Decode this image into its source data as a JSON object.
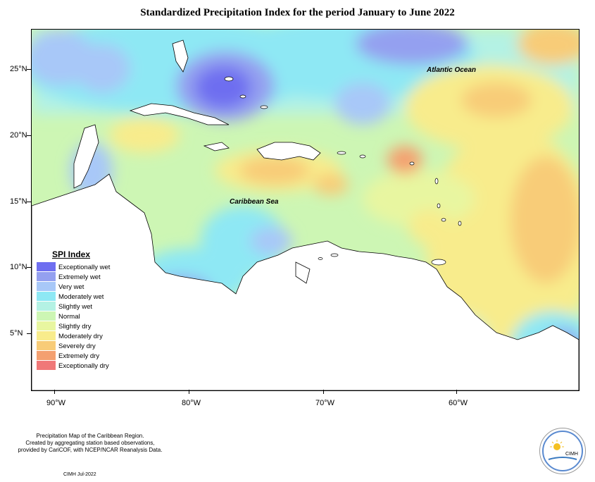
{
  "title": "Standardized Precipitation Index for the period January to June 2022",
  "lat_labels": [
    "25°N",
    "20°N",
    "15°N",
    "10°N",
    "5°N"
  ],
  "lon_labels": [
    "90°W",
    "80°W",
    "70°W",
    "60°W"
  ],
  "regions": {
    "atlantic": "Atlantic Ocean",
    "caribbean": "Caribbean Sea"
  },
  "legend": {
    "title": "SPI Index",
    "items": [
      {
        "label": "Exceptionally wet",
        "color": "#6e6ef0"
      },
      {
        "label": "Extremely wet",
        "color": "#94a0f0"
      },
      {
        "label": "Very wet",
        "color": "#a8c8f8"
      },
      {
        "label": "Moderately wet",
        "color": "#8ee8f4"
      },
      {
        "label": "Slightly wet",
        "color": "#b4f2e4"
      },
      {
        "label": "Normal",
        "color": "#cdf6b4"
      },
      {
        "label": "Slightly dry",
        "color": "#e8f6a0"
      },
      {
        "label": "Moderately dry",
        "color": "#f8ec8c"
      },
      {
        "label": "Severely dry",
        "color": "#f8cc78"
      },
      {
        "label": "Extremely dry",
        "color": "#f4a070"
      },
      {
        "label": "Exceptionally dry",
        "color": "#f07878"
      }
    ]
  },
  "footer": {
    "line1": "Precipitation Map of the Caribbean Region.",
    "line2": "Created by aggregating station based observations,",
    "line3": "provided by CariCOF, with NCEP/NCAR Reanalysis Data.",
    "date": "CIMH Jul-2022"
  },
  "logo_text": "CIMH"
}
